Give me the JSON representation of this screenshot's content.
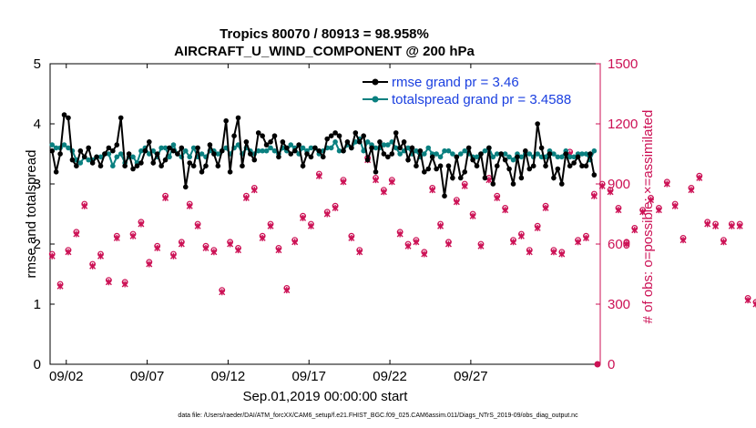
{
  "chart_data": {
    "type": "line",
    "title_line1": "Tropics 80070 / 80913 = 98.958%",
    "title_line2": "AIRCRAFT_U_WIND_COMPONENT @ 200 hPa",
    "xlabel": "Sep.01,2019 00:00:00 start",
    "ylabel_left": "rmse and totalspread",
    "ylabel_right": "# of obs: o=possible; ×=assimilated",
    "xlim": [
      0,
      34
    ],
    "ylim_left": [
      0,
      5
    ],
    "ylim_right": [
      0,
      1500
    ],
    "x_ticks": [
      {
        "value": 1,
        "label": "09/02"
      },
      {
        "value": 6,
        "label": "09/07"
      },
      {
        "value": 11,
        "label": "09/12"
      },
      {
        "value": 16,
        "label": "09/17"
      },
      {
        "value": 21,
        "label": "09/22"
      },
      {
        "value": 26,
        "label": "09/27"
      }
    ],
    "y_ticks_left": [
      "0",
      "1",
      "2",
      "3",
      "4",
      "5"
    ],
    "y_ticks_right": [
      "0",
      "300",
      "600",
      "900",
      "1200",
      "1500"
    ],
    "legend": {
      "position": "top-right",
      "rmse_label": "rmse grand pr = 3.46",
      "spread_label": "totalspread grand pr = 3.4588"
    },
    "colors": {
      "rmse": "#000000",
      "spread": "#0a8080",
      "obs": "#cc1155",
      "legend_text": "#1a3fe0",
      "right_axis": "#cc1155"
    },
    "footnote": "data file: /Users/raeder/DAI/ATM_forcXX/CAM6_setup/f.e21.FHIST_BGC.f09_025.CAM6assim.011/Diags_NTrS_2019-09/obs_diag_output.nc",
    "series": {
      "rmse": {
        "start": 0.125,
        "step": 0.25,
        "values": [
          3.55,
          3.2,
          3.5,
          4.15,
          4.1,
          3.4,
          3.3,
          3.55,
          3.45,
          3.6,
          3.35,
          3.45,
          3.3,
          3.5,
          3.6,
          3.55,
          3.65,
          4.1,
          3.3,
          3.5,
          3.25,
          3.3,
          3.35,
          3.55,
          3.7,
          3.35,
          3.5,
          3.3,
          3.4,
          3.6,
          3.55,
          3.5,
          3.6,
          2.95,
          3.35,
          3.3,
          3.6,
          3.2,
          3.3,
          3.65,
          3.5,
          3.3,
          3.55,
          4.05,
          3.2,
          3.8,
          4.1,
          3.3,
          3.7,
          3.5,
          3.4,
          3.85,
          3.8,
          3.65,
          3.7,
          3.8,
          3.45,
          3.7,
          3.6,
          3.5,
          3.55,
          3.65,
          3.3,
          3.5,
          3.45,
          3.6,
          3.55,
          3.45,
          3.75,
          3.8,
          3.85,
          3.8,
          3.55,
          3.7,
          3.6,
          3.85,
          3.7,
          3.8,
          3.4,
          3.6,
          3.2,
          3.7,
          3.5,
          3.45,
          3.5,
          3.85,
          3.6,
          3.7,
          3.4,
          3.6,
          3.3,
          3.55,
          3.2,
          3.25,
          3.45,
          3.25,
          3.3,
          2.8,
          3.3,
          3.1,
          3.45,
          3.1,
          3.2,
          3.6,
          3.4,
          3.3,
          3.5,
          3.1,
          3.6,
          3.0,
          3.3,
          3.5,
          3.4,
          3.25,
          3.0,
          3.45,
          3.1,
          3.55,
          3.25,
          3.3,
          4.0,
          3.6,
          3.3,
          3.5,
          3.1,
          3.25,
          3.0,
          3.5,
          3.3,
          3.35,
          3.45,
          3.3,
          3.3,
          3.5,
          3.15,
          3.3,
          3.4,
          3.1,
          3.5,
          3.3,
          3.05,
          3.4,
          3.45,
          3.55,
          3.35,
          3.3,
          3.2,
          3.4,
          3.45,
          3.5,
          3.1,
          3.35,
          3.1,
          3.5,
          3.2,
          2.65,
          3.3,
          2.7,
          3.45,
          3.3,
          3.5,
          3.3,
          3.15,
          3.3,
          3.2,
          3.45,
          3.55,
          3.45,
          3.3,
          3.5,
          3.25,
          3.6,
          3.5,
          3.4,
          3.3,
          3.55,
          3.35,
          3.05,
          3.4,
          3.2,
          3.65,
          3.55,
          3.25,
          3.45,
          3.2,
          3.15,
          3.4,
          3.2,
          3.05,
          3.45,
          3.0,
          3.4,
          3.1,
          3.25,
          3.05,
          3.3,
          3.2,
          3.45,
          3.1,
          3.2,
          3.15,
          3.3,
          3.45,
          3.3,
          2.95,
          3.35,
          3.05,
          3.3,
          3.2,
          3.4,
          3.15,
          3.3,
          3.15,
          3.25,
          3.1,
          3.35,
          3.2,
          3.4,
          3.3,
          3.45,
          3.15,
          3.3,
          3.4,
          3.25,
          3.5,
          3.35,
          3.5,
          3.3,
          3.3,
          3.4,
          3.4,
          3.15,
          3.35,
          3.2,
          3.3,
          3.3,
          3.1,
          3.35,
          3.15,
          3.2,
          3.3,
          3.2,
          3.25,
          3.2,
          3.15,
          3.3,
          3.2,
          3.1,
          3.3,
          3.2,
          3.15,
          3.4,
          3.3,
          3.2,
          3.1,
          3.3,
          3.15,
          3.3
        ]
      },
      "spread": {
        "start": 0.125,
        "step": 0.25,
        "values": [
          3.65,
          3.6,
          3.6,
          3.65,
          3.6,
          3.55,
          3.4,
          3.35,
          3.45,
          3.4,
          3.4,
          3.45,
          3.45,
          3.5,
          3.5,
          3.3,
          3.45,
          3.5,
          3.35,
          3.45,
          3.45,
          3.35,
          3.55,
          3.6,
          3.5,
          3.55,
          3.45,
          3.6,
          3.6,
          3.45,
          3.65,
          3.5,
          3.45,
          3.55,
          3.45,
          3.6,
          3.45,
          3.5,
          3.45,
          3.55,
          3.55,
          3.5,
          3.55,
          3.6,
          3.5,
          3.6,
          3.65,
          3.5,
          3.6,
          3.55,
          3.5,
          3.55,
          3.55,
          3.55,
          3.6,
          3.55,
          3.5,
          3.6,
          3.55,
          3.65,
          3.6,
          3.5,
          3.6,
          3.55,
          3.6,
          3.6,
          3.5,
          3.55,
          3.6,
          3.6,
          3.7,
          3.55,
          3.55,
          3.65,
          3.6,
          3.7,
          3.75,
          3.55,
          3.7,
          3.65,
          3.6,
          3.6,
          3.65,
          3.65,
          3.7,
          3.6,
          3.5,
          3.55,
          3.6,
          3.5,
          3.55,
          3.45,
          3.5,
          3.6,
          3.5,
          3.5,
          3.45,
          3.55,
          3.55,
          3.5,
          3.45,
          3.5,
          3.55,
          3.5,
          3.45,
          3.45,
          3.5,
          3.55,
          3.6,
          3.45,
          3.5,
          3.5,
          3.5,
          3.45,
          3.4,
          3.5,
          3.45,
          3.5,
          3.5,
          3.45,
          3.5,
          3.45,
          3.45,
          3.55,
          3.5,
          3.45,
          3.45,
          3.55,
          3.45,
          3.45,
          3.5,
          3.5,
          3.5,
          3.4,
          3.55,
          3.5,
          3.45,
          3.5,
          3.4,
          3.5,
          3.5,
          3.45,
          3.45,
          3.5,
          3.45,
          3.55,
          3.45,
          3.5,
          3.55,
          3.45,
          3.45,
          3.5,
          3.45,
          3.55,
          3.5,
          3.55,
          3.45,
          3.5,
          3.45,
          3.5,
          3.55,
          3.5,
          3.55,
          3.5,
          3.45,
          3.5,
          3.45,
          3.5,
          3.45,
          3.4,
          3.45,
          3.5,
          3.45,
          3.5,
          3.55,
          3.45,
          3.5,
          3.45,
          3.5,
          3.4,
          3.5,
          3.45,
          3.5,
          3.55,
          3.45,
          3.5,
          3.45,
          3.4,
          3.5,
          3.45,
          3.55,
          3.5,
          3.45,
          3.5,
          3.45,
          3.4,
          3.5,
          3.45,
          3.5,
          3.45,
          3.4,
          3.45,
          3.5,
          3.45,
          3.4,
          3.5,
          3.45,
          3.5,
          3.4,
          3.45,
          3.45,
          3.5,
          3.45,
          3.4,
          3.45,
          3.5,
          3.45,
          3.4,
          3.45,
          3.5,
          3.4,
          3.45,
          3.45,
          3.5,
          3.45,
          3.4,
          3.45,
          3.5,
          3.4,
          3.45,
          3.45,
          3.4,
          3.45,
          3.5,
          3.4,
          3.45,
          3.45,
          3.5,
          3.4,
          3.45,
          3.45,
          3.4,
          3.45,
          3.5,
          3.45,
          3.4,
          3.45,
          3.4,
          3.45,
          3.5,
          3.4,
          3.45,
          3.45,
          3.4,
          3.45,
          3.5,
          3.4,
          3.45,
          3.4,
          3.45,
          3.5,
          3.45,
          3.4
        ]
      },
      "obs_possible": {
        "start": 0.125,
        "step": 0.5,
        "values": [
          550,
          400,
          570,
          660,
          800,
          500,
          550,
          420,
          640,
          410,
          650,
          710,
          510,
          590,
          840,
          550,
          610,
          800,
          700,
          590,
          570,
          370,
          610,
          580,
          840,
          880,
          640,
          700,
          580,
          380,
          620,
          740,
          700,
          950,
          760,
          790,
          920,
          640,
          570,
          1030,
          930,
          870,
          920,
          660,
          600,
          620,
          560,
          880,
          700,
          610,
          820,
          900,
          750,
          600,
          930,
          840,
          780,
          620,
          650,
          570,
          690,
          790,
          570,
          560,
          1060,
          620,
          640,
          850,
          900,
          870,
          780,
          610,
          680,
          770,
          830,
          780,
          910,
          800,
          630,
          880,
          940,
          710,
          700,
          620,
          700,
          700,
          330,
          310,
          890,
          280,
          520,
          820,
          600,
          950,
          830,
          1020,
          970,
          830,
          580,
          870,
          370,
          750,
          690,
          950,
          710,
          640,
          600,
          710,
          870,
          690,
          620,
          620,
          880,
          600,
          860
        ]
      },
      "obs_assimilated": {
        "start": 0.125,
        "step": 0.5,
        "values": [
          540,
          390,
          560,
          650,
          790,
          490,
          540,
          410,
          630,
          400,
          640,
          700,
          500,
          580,
          830,
          540,
          600,
          790,
          690,
          580,
          560,
          360,
          600,
          570,
          830,
          870,
          630,
          690,
          570,
          370,
          610,
          730,
          690,
          940,
          750,
          780,
          910,
          630,
          560,
          1020,
          920,
          860,
          910,
          650,
          590,
          610,
          550,
          870,
          690,
          600,
          810,
          890,
          740,
          590,
          920,
          830,
          770,
          610,
          640,
          560,
          680,
          780,
          560,
          550,
          1050,
          610,
          630,
          840,
          890,
          860,
          770,
          600,
          670,
          760,
          820,
          770,
          900,
          790,
          620,
          870,
          930,
          700,
          690,
          610,
          690,
          690,
          320,
          300,
          880,
          270,
          510,
          810,
          590,
          940,
          820,
          1010,
          960,
          820,
          570,
          860,
          360,
          740,
          680,
          940,
          700,
          630,
          590,
          700,
          860,
          680,
          610,
          610,
          870,
          590,
          850
        ]
      }
    }
  }
}
